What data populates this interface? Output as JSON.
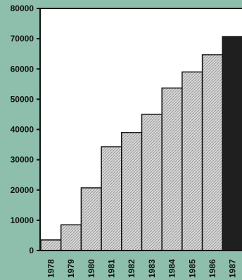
{
  "chart_data": {
    "type": "bar",
    "title": "",
    "xlabel": "",
    "ylabel": "",
    "categories": [
      "1978",
      "1979",
      "1980",
      "1981",
      "1982",
      "1983",
      "1984",
      "1985",
      "1986",
      "1987"
    ],
    "values": [
      3500,
      8500,
      20700,
      34300,
      39000,
      45000,
      53700,
      59000,
      64700,
      70700
    ],
    "ylim": [
      0,
      80000
    ],
    "y_ticks": [
      "0",
      "10000",
      "20000",
      "30000",
      "40000",
      "50000",
      "60000",
      "70000",
      "80000"
    ],
    "grid": false,
    "colors": {
      "background": "#8ebfad",
      "plot_area": "#ffffff",
      "bar_fill": "#d8d8d8",
      "bar_hatch": "#9a9a9a",
      "highlight_bar": "#1f1f1f",
      "axis": "#111111",
      "text": "#111111"
    },
    "highlighted_category": "1987"
  }
}
